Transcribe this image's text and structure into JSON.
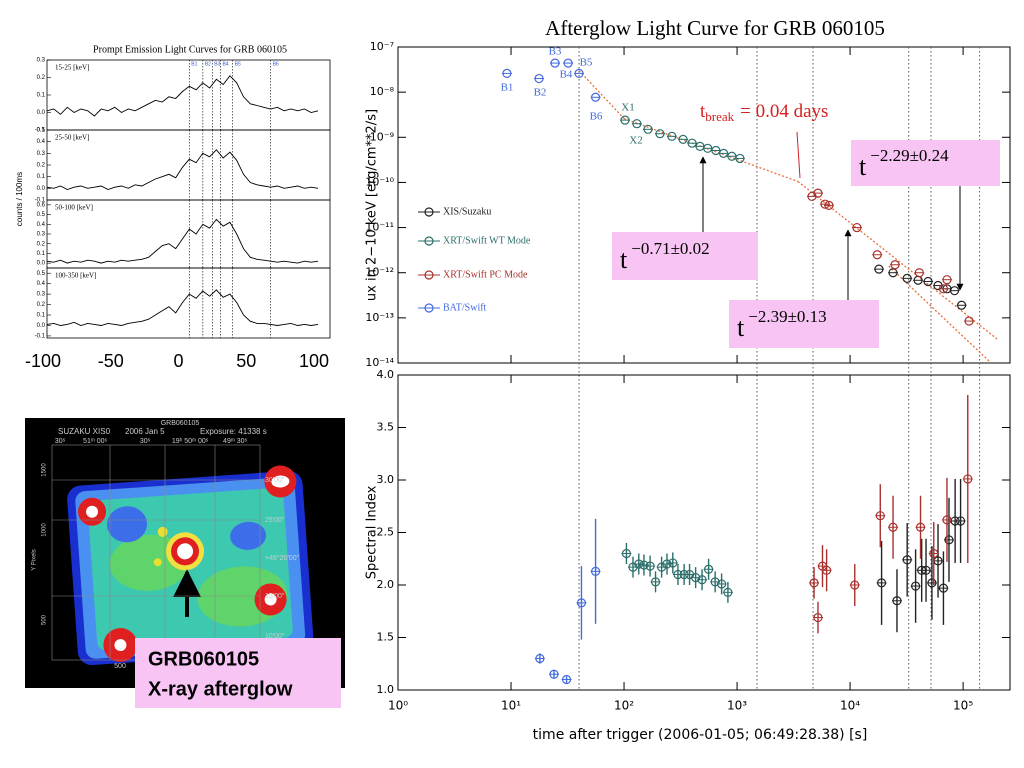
{
  "chart_data": [
    {
      "type": "line",
      "title": "Prompt Emission Light Curves for GRB 060105",
      "ylabel": "counts / 100ms",
      "x": [
        -100,
        -95,
        -90,
        -85,
        -80,
        -75,
        -70,
        -65,
        -60,
        -55,
        -50,
        -45,
        -40,
        -35,
        -30,
        -25,
        -20,
        -15,
        -10,
        -5,
        0,
        5,
        10,
        15,
        20,
        25,
        30,
        35,
        40,
        45,
        50,
        55,
        60,
        65,
        70,
        75,
        80,
        85,
        90,
        95,
        100
      ],
      "xlim": [
        -100,
        100
      ],
      "xticks": [
        -100,
        -50,
        0,
        50,
        100
      ],
      "color": "#000000",
      "markers": {
        "labels": [
          "B1",
          "B2",
          "B3",
          "B4",
          "B5",
          "B6"
        ],
        "x": [
          5,
          15,
          22,
          28,
          37,
          65
        ],
        "color": "#3355cc"
      },
      "panels": [
        {
          "name": "15-25 [keV]",
          "ylim": [
            -0.1,
            0.3
          ],
          "yticks": [
            -0.1,
            {
              "value": 0,
              "label": "0.0"
            },
            0.1,
            0.2,
            0.3
          ],
          "values": [
            0.01,
            0.02,
            -0.01,
            0.03,
            0.0,
            0.02,
            0.01,
            -0.02,
            0.02,
            0.01,
            0.03,
            0.0,
            0.02,
            0.01,
            0.03,
            0.05,
            0.07,
            0.06,
            0.09,
            0.08,
            0.12,
            0.15,
            0.13,
            0.17,
            0.14,
            0.19,
            0.16,
            0.21,
            0.17,
            0.09,
            0.05,
            0.04,
            0.03,
            0.02,
            0.03,
            0.01,
            0.02,
            0.01,
            0.02,
            0.0,
            0.01
          ]
        },
        {
          "name": "25-50 [keV]",
          "ylim": [
            -0.1,
            0.5
          ],
          "yticks": [
            -0.1,
            {
              "value": 0,
              "label": "0.0"
            },
            0.1,
            0.2,
            0.3,
            0.4,
            0.5
          ],
          "values": [
            0.01,
            0.0,
            0.02,
            -0.01,
            0.01,
            0.02,
            0.0,
            0.01,
            0.02,
            -0.01,
            0.01,
            0.02,
            0.0,
            0.03,
            0.02,
            0.05,
            0.08,
            0.1,
            0.12,
            0.09,
            0.18,
            0.25,
            0.22,
            0.3,
            0.27,
            0.33,
            0.26,
            0.31,
            0.24,
            0.12,
            0.05,
            0.03,
            0.02,
            0.01,
            0.02,
            0.0,
            0.01,
            0.02,
            0.0,
            0.01,
            0.0
          ]
        },
        {
          "name": "50-100 [keV]",
          "ylim": [
            -0.05,
            0.65
          ],
          "yticks": [
            {
              "value": 0,
              "label": "0.0"
            },
            0.1,
            0.2,
            0.3,
            0.4,
            0.5,
            0.6
          ],
          "values": [
            0.02,
            0.01,
            0.03,
            0.0,
            0.02,
            0.01,
            0.03,
            0.02,
            0.0,
            0.02,
            0.01,
            0.03,
            0.02,
            0.03,
            0.04,
            0.06,
            0.12,
            0.18,
            0.2,
            0.15,
            0.25,
            0.35,
            0.3,
            0.4,
            0.36,
            0.45,
            0.38,
            0.42,
            0.3,
            0.15,
            0.06,
            0.04,
            0.03,
            0.02,
            0.01,
            0.02,
            0.01,
            0.0,
            0.02,
            0.01,
            0.02
          ]
        },
        {
          "name": "100-350 [keV]",
          "ylim": [
            -0.12,
            0.55
          ],
          "yticks": [
            -0.1,
            {
              "value": 0,
              "label": "0.0"
            },
            0.1,
            0.2,
            0.3,
            0.4,
            0.5
          ],
          "values": [
            0.01,
            0.02,
            0.0,
            0.01,
            0.03,
            0.0,
            0.02,
            0.01,
            0.0,
            0.02,
            0.01,
            0.0,
            0.02,
            0.03,
            0.04,
            0.06,
            0.1,
            0.14,
            0.18,
            0.12,
            0.22,
            0.3,
            0.26,
            0.33,
            0.28,
            0.34,
            0.27,
            0.3,
            0.22,
            0.1,
            0.04,
            0.02,
            0.02,
            0.01,
            0.0,
            0.01,
            0.02,
            0.0,
            0.01,
            0.0,
            0.01
          ]
        }
      ]
    },
    {
      "type": "scatter",
      "title": "Afterglow Light Curve for GRB 060105",
      "ylabel": "ux in 2−10 keV [erg/cm**2/s]",
      "log_x": true,
      "log_y": true,
      "xlim": [
        1,
        260000
      ],
      "ylim": [
        1e-14,
        1e-07
      ],
      "yticks": [
        {
          "value": 1e-14,
          "label": "10⁻¹⁴"
        },
        {
          "value": 1e-13,
          "label": "10⁻¹³"
        },
        {
          "value": 1e-12,
          "label": "10⁻¹²"
        },
        {
          "value": 1e-11,
          "label": "10⁻¹¹"
        },
        {
          "value": 1e-10,
          "label": "10⁻¹⁰"
        },
        {
          "value": 1e-09,
          "label": "10⁻⁹"
        },
        {
          "value": 1e-08,
          "label": "10⁻⁸"
        },
        {
          "value": 1e-07,
          "label": "10⁻⁷"
        }
      ],
      "series": [
        {
          "name": "XIS/Suzaku",
          "color": "#222222",
          "x": [
            18000,
            24000,
            32000,
            40000,
            49000,
            60000,
            72000,
            84000,
            97000
          ],
          "values": [
            1.2e-12,
            1e-12,
            7.5e-13,
            6.8e-13,
            6.4e-13,
            5.2e-13,
            4.4e-13,
            4e-13,
            1.9e-13
          ]
        },
        {
          "name": "XRT/Swift WT Mode",
          "color": "#2a6e6a",
          "x": [
            102,
            130,
            163,
            208,
            265,
            333,
            400,
            470,
            550,
            650,
            760,
            900,
            1060
          ],
          "values": [
            2.4e-09,
            2e-09,
            1.5e-09,
            1.2e-09,
            1.05e-09,
            9e-10,
            7.4e-10,
            6.3e-10,
            5.7e-10,
            5.1e-10,
            4.4e-10,
            3.8e-10,
            3.4e-10
          ]
        },
        {
          "name": "XRT/Swift PC Mode",
          "color": "#a8302c",
          "x": [
            4600,
            5200,
            6000,
            6500,
            11500,
            17400,
            25000,
            41000,
            67000,
            72000,
            113000
          ],
          "values": [
            4.9e-11,
            5.8e-11,
            3.3e-11,
            3.1e-11,
            1e-11,
            2.5e-12,
            1.5e-12,
            1e-12,
            4.4e-13,
            7e-13,
            8.5e-14
          ]
        },
        {
          "name": "BAT/Swift",
          "color": "#4169e1",
          "x": [
            9.2,
            17.7,
            24.5,
            32,
            40,
            56
          ],
          "values": [
            2.6e-08,
            2e-08,
            4.4e-08,
            4.4e-08,
            2.6e-08,
            7.7e-09
          ]
        }
      ],
      "point_labels": [
        "B1",
        "B2",
        "B3",
        "B4",
        "B5",
        "B6",
        "X1",
        "X2"
      ],
      "fits": {
        "color": "#e8703a",
        "lines": [
          {
            "x": [
              40,
              100
            ],
            "values": [
              3e-08,
              2.6e-09
            ]
          },
          {
            "x": [
              100,
              3456
            ],
            "values": [
              2.6e-09,
              1.05e-10
            ]
          },
          {
            "x": [
              3456,
              200000
            ],
            "values": [
              1.05e-10,
              3.4e-14
            ]
          },
          {
            "x": [
              22000,
              170000
            ],
            "values": [
              1.4e-12,
              1.1e-14
            ]
          }
        ]
      },
      "vlines": [
        40,
        1500,
        4700,
        33000,
        52000,
        140000
      ],
      "break_label": {
        "base": "t",
        "subscript": "break",
        "text": "= 0.04 days",
        "color": "#d42020"
      },
      "annotations": [
        {
          "base": "t",
          "exponent": "−0.71±0.02"
        },
        {
          "base": "t",
          "exponent": "−2.39±0.13"
        },
        {
          "base": "t",
          "exponent": "−2.29±0.24"
        }
      ],
      "box_color": "#f7c4f3"
    },
    {
      "type": "scatter",
      "ylabel": "Spectral Index",
      "xlabel": "time after trigger (2006-01-05; 06:49:28.38) [s]",
      "log_x": true,
      "log_y": false,
      "xlim": [
        1,
        260000
      ],
      "ylim": [
        1.0,
        4.0
      ],
      "xticks": [
        {
          "value": 1,
          "label": "10⁰"
        },
        {
          "value": 10,
          "label": "10¹"
        },
        {
          "value": 100,
          "label": "10²"
        },
        {
          "value": 1000,
          "label": "10³"
        },
        {
          "value": 10000,
          "label": "10⁴"
        },
        {
          "value": 100000,
          "label": "10⁵"
        }
      ],
      "yticks": [
        {
          "value": 1,
          "label": "1.0"
        },
        1.5,
        {
          "value": 2,
          "label": "2.0"
        },
        2.5,
        {
          "value": 3,
          "label": "3.0"
        },
        3.5,
        {
          "value": 4,
          "label": "4.0"
        }
      ],
      "series": [
        {
          "color": "#222222",
          "x": [
            19000,
            26000,
            32000,
            38000,
            43000,
            47000,
            53000,
            60000,
            67000,
            75000,
            85000,
            95000
          ],
          "values": [
            2.02,
            1.85,
            2.24,
            1.99,
            2.14,
            2.14,
            2.02,
            2.23,
            1.97,
            2.43,
            2.61,
            2.61
          ],
          "errors": [
            0.4,
            0.3,
            0.35,
            0.35,
            0.3,
            0.3,
            0.35,
            0.35,
            0.35,
            0.4,
            0.4,
            0.4
          ]
        },
        {
          "color": "#2a6e6a",
          "x": [
            105,
            120,
            135,
            150,
            170,
            190,
            215,
            240,
            270,
            300,
            340,
            380,
            430,
            490,
            560,
            640,
            730,
            830
          ],
          "values": [
            2.3,
            2.17,
            2.2,
            2.19,
            2.18,
            2.03,
            2.17,
            2.2,
            2.21,
            2.1,
            2.1,
            2.1,
            2.07,
            2.05,
            2.15,
            2.03,
            2.01,
            1.93
          ],
          "errors": [
            0.1,
            0.1,
            0.1,
            0.1,
            0.1,
            0.1,
            0.1,
            0.1,
            0.1,
            0.1,
            0.1,
            0.1,
            0.1,
            0.1,
            0.1,
            0.1,
            0.1,
            0.1
          ]
        },
        {
          "color": "#a8302c",
          "x": [
            4800,
            5200,
            5700,
            6200,
            11000,
            18500,
            24000,
            42000,
            55000,
            72000,
            110000
          ],
          "values": [
            2.02,
            1.69,
            2.18,
            2.14,
            2.0,
            2.66,
            2.55,
            2.55,
            2.3,
            2.62,
            3.01
          ],
          "errors": [
            0.15,
            0.15,
            0.2,
            0.2,
            0.2,
            0.3,
            0.3,
            0.3,
            0.3,
            0.4,
            0.8
          ]
        },
        {
          "color": "#4169e1",
          "x": [
            18,
            24,
            31,
            42,
            56
          ],
          "values": [
            1.3,
            1.15,
            1.1,
            1.83,
            2.13
          ],
          "errors": [
            0.05,
            0.04,
            0.03,
            0.35,
            0.5
          ]
        }
      ]
    }
  ],
  "image": {
    "object": "GRB060105",
    "instrument": "SUZAKU XIS0",
    "date": "2006 Jan 5",
    "exposure": "Exposure: 41338 s",
    "ylabel": "Y Pixels",
    "left_ticks": [
      "1500",
      "1000",
      "500"
    ],
    "bottom_ticks": [
      "500"
    ],
    "top_coords": [
      "30ˢ",
      "51ᵐ 00ˢ",
      "30ˢ",
      "19ʰ 50ᵐ 00ˢ",
      "49ᵐ 30ˢ"
    ],
    "right_coords": [
      "30'00\"",
      "25'00\"",
      "+46°20'00\"",
      "15'00\"",
      "10'00\""
    ],
    "caption": [
      "GRB060105",
      "X-ray afterglow"
    ]
  }
}
